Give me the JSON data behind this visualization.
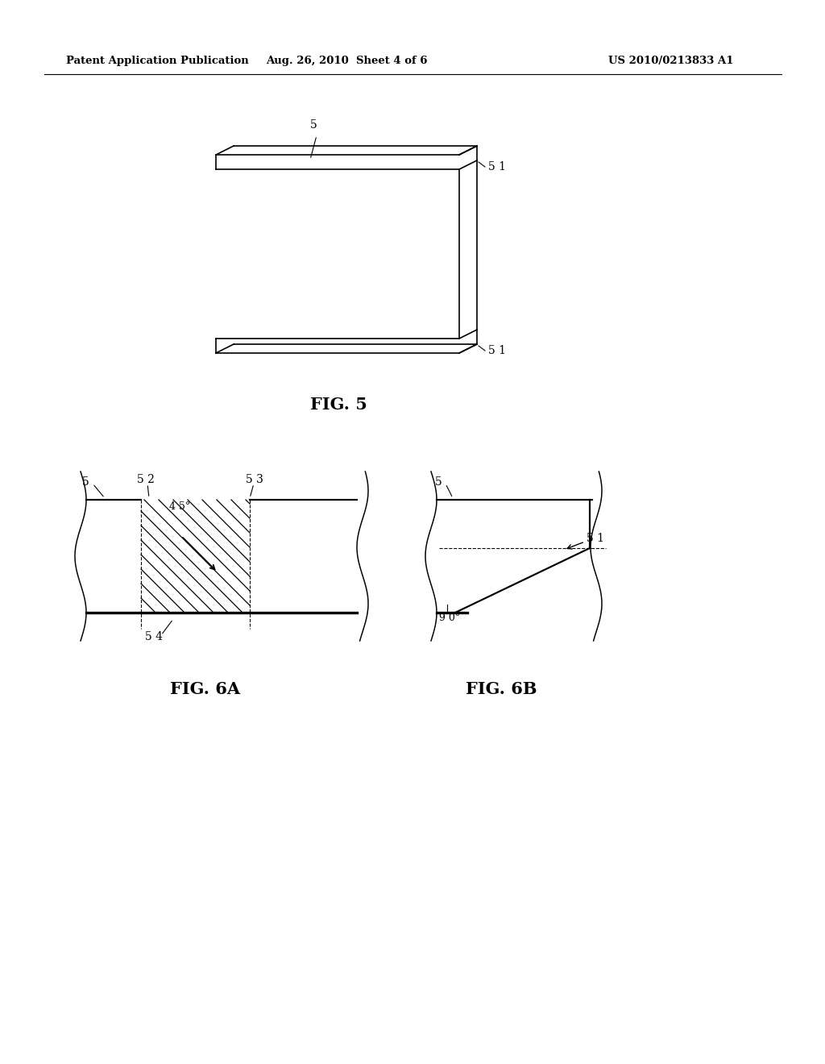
{
  "bg_color": "#ffffff",
  "header_left": "Patent Application Publication",
  "header_mid": "Aug. 26, 2010  Sheet 4 of 6",
  "header_right": "US 2010/0213833 A1",
  "fig5_label": "FIG. 5",
  "fig6a_label": "FIG. 6A",
  "fig6b_label": "FIG. 6B",
  "line_color": "#000000",
  "line_width": 1.2
}
